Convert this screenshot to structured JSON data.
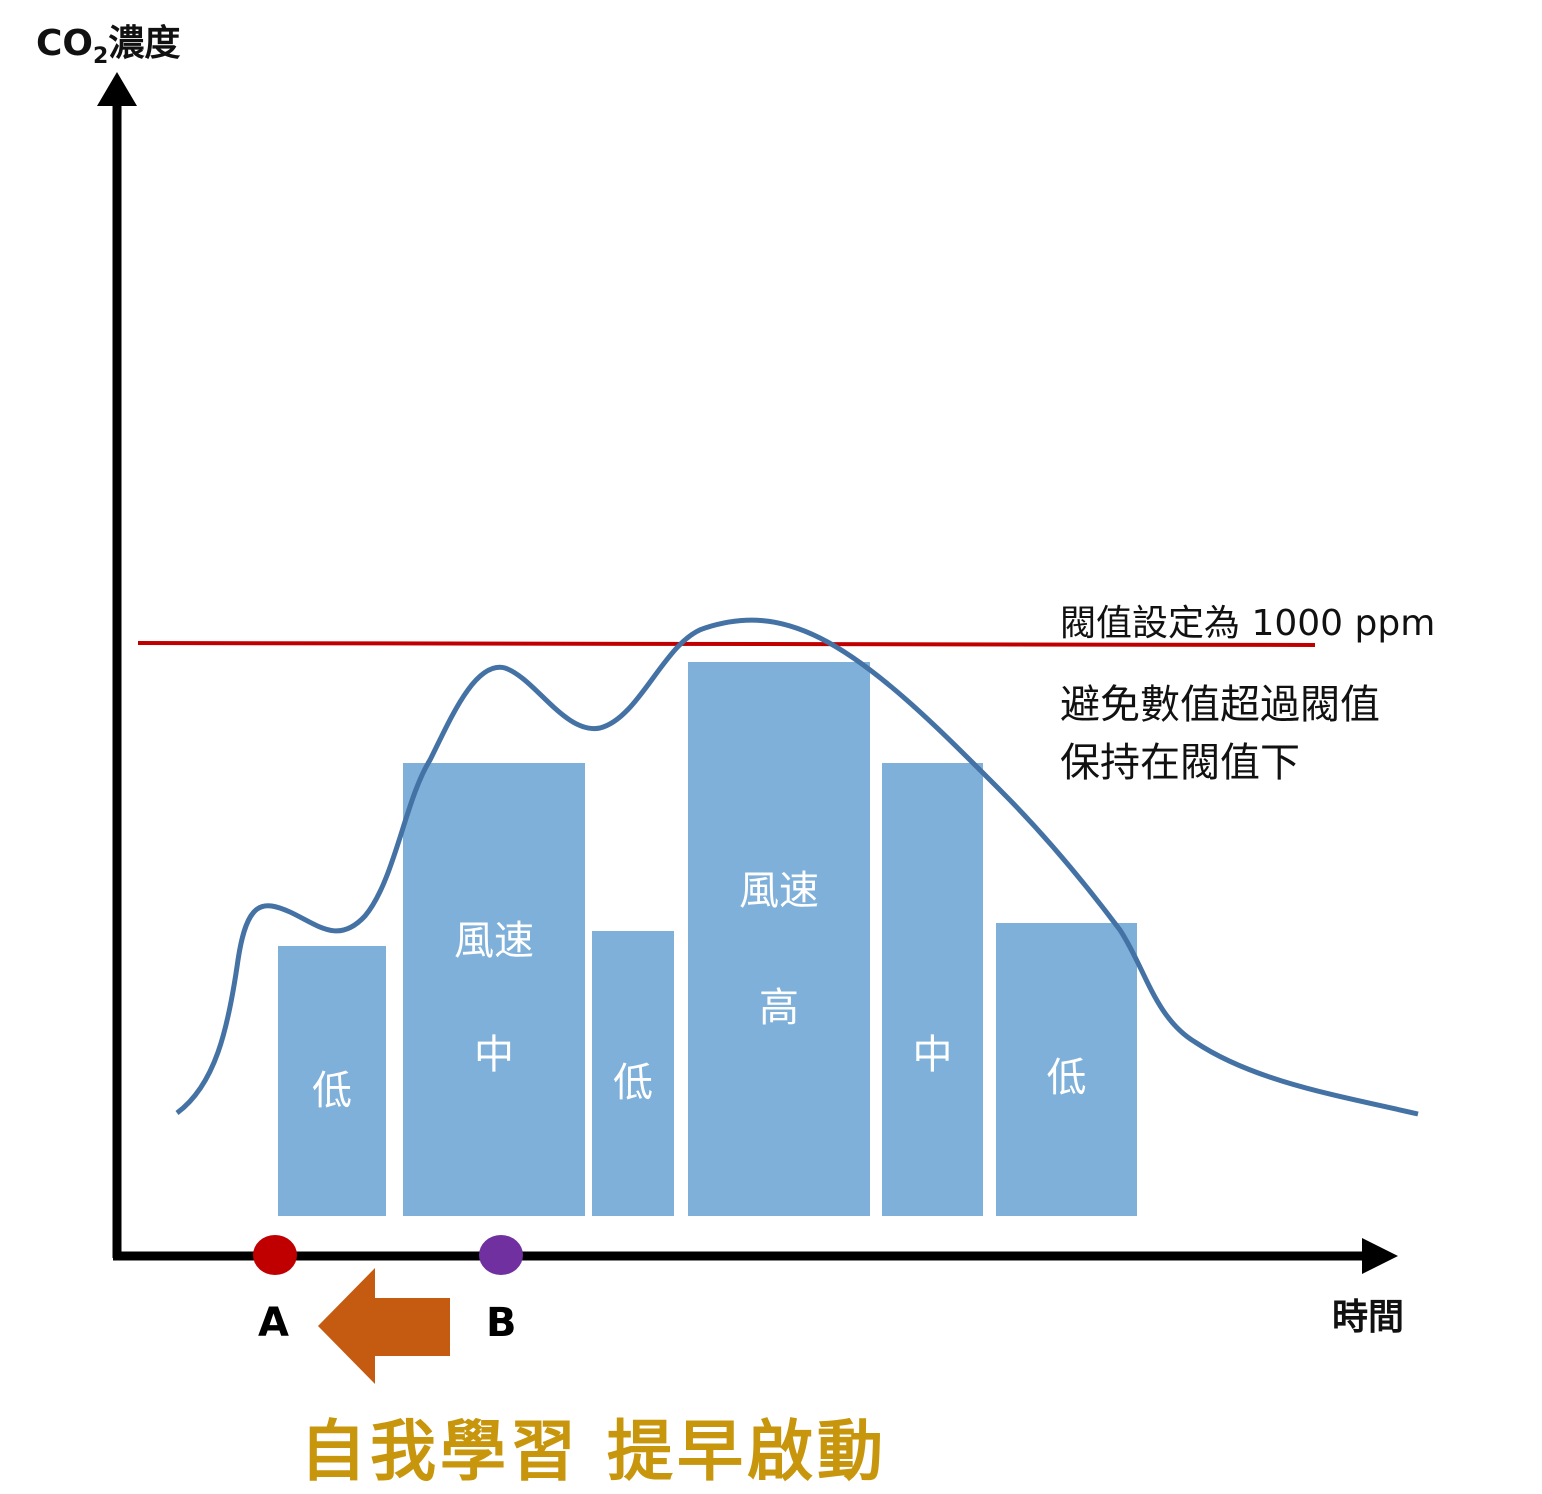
{
  "axes": {
    "y_label_main": "CO",
    "y_label_sub": "2",
    "y_label_rest": "濃度",
    "x_label": "時間"
  },
  "threshold": {
    "label": "閥值設定為 1000 ppm",
    "color": "#c00000"
  },
  "notes": [
    "避免數值超過閥值",
    "保持在閥值下"
  ],
  "bars": {
    "color": "#7eb0da",
    "items": [
      {
        "lines": [
          "低"
        ]
      },
      {
        "lines": [
          "風速",
          "中"
        ]
      },
      {
        "lines": [
          "低"
        ]
      },
      {
        "lines": [
          "風速",
          "高"
        ]
      },
      {
        "lines": [
          "中"
        ]
      },
      {
        "lines": [
          "低"
        ]
      }
    ]
  },
  "curve_color": "#4472a4",
  "points": {
    "a": {
      "label": "A",
      "color": "#c00000"
    },
    "b": {
      "label": "B",
      "color": "#7030a0"
    }
  },
  "arrow_color": "#c55a11",
  "slogan": "自我學習 提早啟動"
}
